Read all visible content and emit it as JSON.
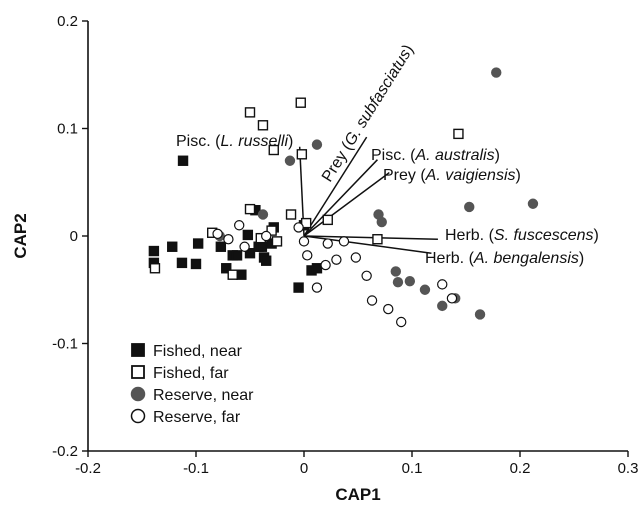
{
  "chart_data": {
    "type": "scatter",
    "xlabel": "CAP1",
    "ylabel": "CAP2",
    "xlim": [
      -0.2,
      0.3
    ],
    "ylim": [
      -0.2,
      0.2
    ],
    "x_ticks": [
      -0.2,
      -0.1,
      0,
      0.1,
      0.2,
      0.3
    ],
    "x_tick_labels": [
      "-0.2",
      "-0.1",
      "0",
      "0.1",
      "0.2",
      "0.3"
    ],
    "y_ticks": [
      -0.2,
      -0.1,
      0,
      0.1,
      0.2
    ],
    "y_tick_labels": [
      "-0.2",
      "-0.1",
      "0",
      "0.1",
      "0.2"
    ],
    "grid": false,
    "legend_position": "bottom-left",
    "series": [
      {
        "name": "Fished, near",
        "marker": "square",
        "filled": true,
        "color": "#111111",
        "points": [
          [
            -0.112,
            0.07
          ],
          [
            -0.139,
            -0.025
          ],
          [
            -0.139,
            -0.014
          ],
          [
            -0.122,
            -0.01
          ],
          [
            -0.113,
            -0.025
          ],
          [
            -0.1,
            -0.026
          ],
          [
            -0.098,
            -0.007
          ],
          [
            -0.077,
            -0.01
          ],
          [
            -0.072,
            -0.03
          ],
          [
            -0.066,
            -0.018
          ],
          [
            -0.062,
            -0.018
          ],
          [
            -0.058,
            -0.036
          ],
          [
            -0.052,
            0.001
          ],
          [
            -0.05,
            -0.016
          ],
          [
            -0.045,
            0.024
          ],
          [
            -0.042,
            -0.01
          ],
          [
            -0.039,
            -0.01
          ],
          [
            -0.037,
            -0.02
          ],
          [
            -0.035,
            -0.023
          ],
          [
            -0.03,
            -0.007
          ],
          [
            -0.028,
            0.008
          ],
          [
            -0.005,
            -0.048
          ],
          [
            0.007,
            -0.032
          ],
          [
            0.012,
            -0.03
          ],
          [
            0.0,
            0.01
          ]
        ]
      },
      {
        "name": "Fished, far",
        "marker": "square",
        "filled": false,
        "color": "#111111",
        "points": [
          [
            -0.05,
            0.115
          ],
          [
            -0.038,
            0.103
          ],
          [
            -0.028,
            0.08
          ],
          [
            -0.003,
            0.124
          ],
          [
            -0.138,
            -0.03
          ],
          [
            -0.085,
            0.003
          ],
          [
            -0.066,
            -0.036
          ],
          [
            -0.05,
            0.025
          ],
          [
            -0.04,
            -0.002
          ],
          [
            -0.03,
            0.005
          ],
          [
            -0.025,
            -0.005
          ],
          [
            -0.012,
            0.02
          ],
          [
            -0.002,
            0.076
          ],
          [
            0.002,
            0.012
          ],
          [
            0.022,
            0.015
          ],
          [
            0.068,
            -0.003
          ],
          [
            0.143,
            0.095
          ]
        ]
      },
      {
        "name": "Reserve, near",
        "marker": "circle",
        "filled": true,
        "color": "#555555",
        "points": [
          [
            0.178,
            0.152
          ],
          [
            0.212,
            0.03
          ],
          [
            0.153,
            0.027
          ],
          [
            0.072,
            0.013
          ],
          [
            0.069,
            0.02
          ],
          [
            0.085,
            -0.033
          ],
          [
            0.087,
            -0.043
          ],
          [
            0.098,
            -0.042
          ],
          [
            0.112,
            -0.05
          ],
          [
            0.128,
            -0.065
          ],
          [
            0.14,
            -0.058
          ],
          [
            0.163,
            -0.073
          ],
          [
            0.012,
            0.085
          ],
          [
            -0.013,
            0.07
          ],
          [
            -0.078,
            0.0
          ],
          [
            -0.038,
            0.02
          ]
        ]
      },
      {
        "name": "Reserve, far",
        "marker": "circle",
        "filled": false,
        "color": "#111111",
        "points": [
          [
            0.02,
            -0.027
          ],
          [
            0.03,
            -0.022
          ],
          [
            0.048,
            -0.02
          ],
          [
            0.058,
            -0.037
          ],
          [
            0.063,
            -0.06
          ],
          [
            0.078,
            -0.068
          ],
          [
            0.09,
            -0.08
          ],
          [
            0.128,
            -0.045
          ],
          [
            0.137,
            -0.058
          ],
          [
            0.012,
            -0.048
          ],
          [
            0.022,
            -0.007
          ],
          [
            0.037,
            -0.005
          ],
          [
            0.003,
            -0.018
          ],
          [
            -0.005,
            0.008
          ],
          [
            -0.055,
            -0.01
          ],
          [
            -0.06,
            0.01
          ],
          [
            -0.07,
            -0.003
          ],
          [
            -0.08,
            0.002
          ],
          [
            -0.035,
            0.0
          ],
          [
            0.0,
            -0.005
          ]
        ]
      }
    ],
    "vectors": [
      {
        "pre": "Prey (",
        "italic": "G. subfasciatus",
        "post": ")",
        "x": 0.058,
        "y": 0.092
      },
      {
        "pre": "Pisc. (",
        "italic": "L. russelli",
        "post": ")",
        "x": -0.004,
        "y": 0.083
      },
      {
        "pre": "Pisc. (",
        "italic": "A. australis",
        "post": ")",
        "x": 0.068,
        "y": 0.071
      },
      {
        "pre": "Prey (",
        "italic": "A. vaigiensis",
        "post": ")",
        "x": 0.079,
        "y": 0.059
      },
      {
        "pre": "Herb. (",
        "italic": "S. fuscescens",
        "post": ")",
        "x": 0.124,
        "y": -0.003
      },
      {
        "pre": "Herb. (",
        "italic": "A. bengalensis",
        "post": ")",
        "x": 0.118,
        "y": -0.016
      }
    ]
  }
}
